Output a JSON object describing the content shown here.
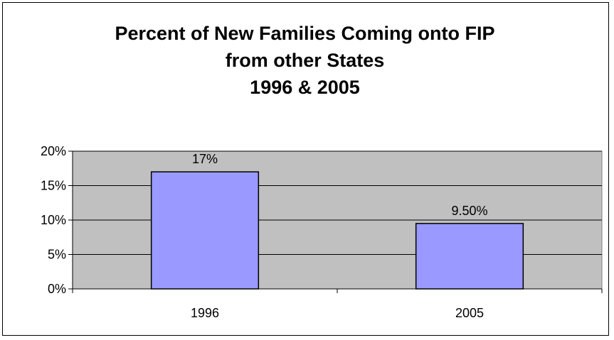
{
  "chart_data": {
    "type": "bar",
    "title_lines": [
      "Percent of New Families Coming onto FIP",
      "from other States",
      "1996 & 2005"
    ],
    "categories": [
      "1996",
      "2005"
    ],
    "values": [
      17,
      9.5
    ],
    "data_labels": [
      "17%",
      "9.50%"
    ],
    "ylim": [
      0,
      20
    ],
    "yticks": [
      0,
      5,
      10,
      15,
      20
    ],
    "ytick_labels": [
      "0%",
      "5%",
      "10%",
      "15%",
      "20%"
    ],
    "xlabel": "",
    "ylabel": "",
    "grid": true,
    "legend": "none",
    "colors": {
      "plot_background": "#C0C0C0",
      "bar_fill": "#9999FF",
      "bar_stroke": "#000000",
      "gridline": "#000000"
    }
  }
}
